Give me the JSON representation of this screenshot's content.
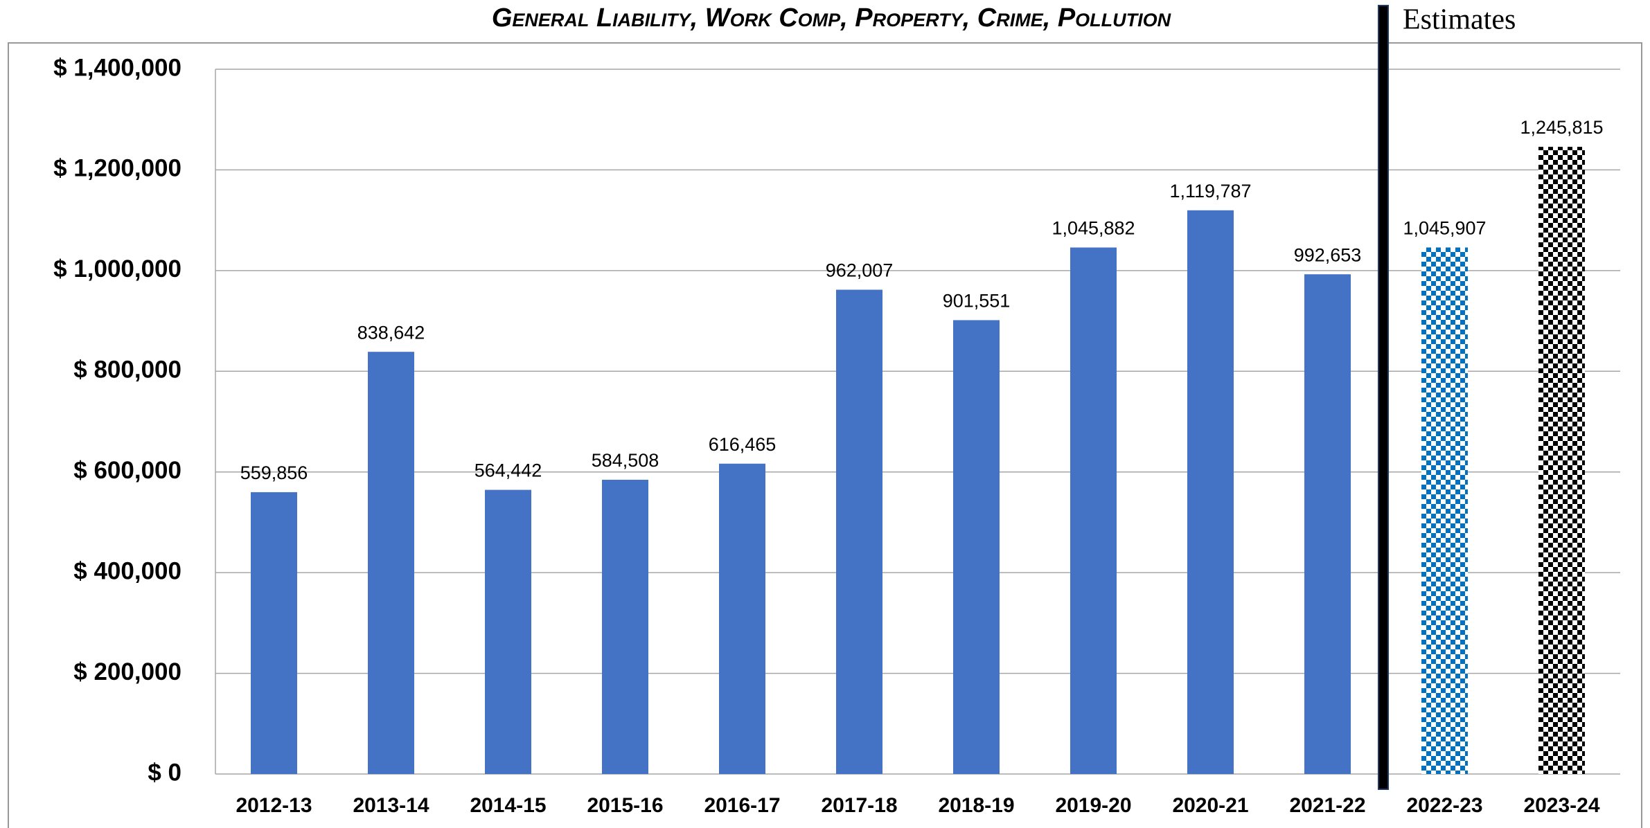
{
  "chart_data": {
    "type": "bar",
    "title": "General Liability, Work Comp, Property, Crime, Pollution",
    "annotations": [
      "Estimates"
    ],
    "categories": [
      "2012-13",
      "2013-14",
      "2014-15",
      "2015-16",
      "2016-17",
      "2017-18",
      "2018-19",
      "2019-20",
      "2020-21",
      "2021-22",
      "2022-23",
      "2023-24"
    ],
    "values": [
      559856,
      838642,
      564442,
      584508,
      616465,
      962007,
      901551,
      1045882,
      1119787,
      992653,
      1045907,
      1245815
    ],
    "value_labels": [
      "559,856",
      "838,642",
      "564,442",
      "584,508",
      "616,465",
      "962,007",
      "901,551",
      "1,045,882",
      "1,119,787",
      "992,653",
      "1,045,907",
      "1,245,815"
    ],
    "colors": [
      "#4472c4",
      "#4472c4",
      "#4472c4",
      "#4472c4",
      "#4472c4",
      "#4472c4",
      "#4472c4",
      "#4472c4",
      "#4472c4",
      "#4472c4",
      "#0070c0",
      "#000000"
    ],
    "checkered": [
      false,
      false,
      false,
      false,
      false,
      false,
      false,
      false,
      false,
      false,
      true,
      true
    ],
    "ylim": [
      0,
      1400000
    ],
    "yticks": [
      {
        "value": 0,
        "label": "$ 0"
      },
      {
        "value": 200000,
        "label": "$ 200,000"
      },
      {
        "value": 400000,
        "label": "$ 400,000"
      },
      {
        "value": 600000,
        "label": "$ 600,000"
      },
      {
        "value": 800000,
        "label": "$ 800,000"
      },
      {
        "value": 1000000,
        "label": "$ 1,000,000"
      },
      {
        "value": 1200000,
        "label": "$ 1,200,000"
      },
      {
        "value": 1400000,
        "label": "$ 1,400,000"
      }
    ],
    "grid": true
  }
}
